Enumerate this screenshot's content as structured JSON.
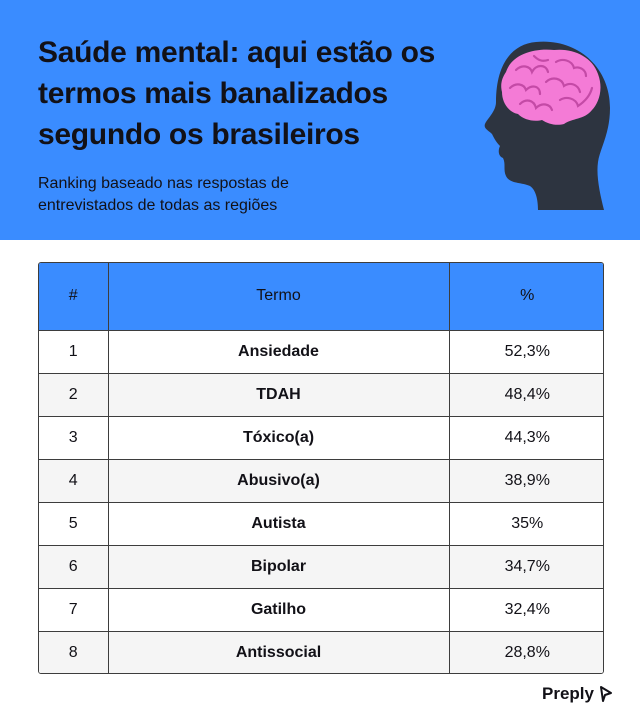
{
  "header": {
    "title": "Saúde mental: aqui estão os termos mais banalizados segundo os brasileiros",
    "subtitle": "Ranking baseado nas respostas de entrevistados de todas as regiões",
    "background": "#3a8cff",
    "illustration": "head-with-brain-icon",
    "brain_color": "#f47bd6",
    "head_color": "#2d3440"
  },
  "table": {
    "headers": [
      "#",
      "Termo",
      "%"
    ],
    "rows": [
      {
        "rank": "1",
        "term": "Ansiedade",
        "pct": "52,3%"
      },
      {
        "rank": "2",
        "term": "TDAH",
        "pct": "48,4%"
      },
      {
        "rank": "3",
        "term": "Tóxico(a)",
        "pct": "44,3%"
      },
      {
        "rank": "4",
        "term": "Abusivo(a)",
        "pct": "38,9%"
      },
      {
        "rank": "5",
        "term": "Autista",
        "pct": "35%"
      },
      {
        "rank": "6",
        "term": "Bipolar",
        "pct": "34,7%"
      },
      {
        "rank": "7",
        "term": "Gatilho",
        "pct": "32,4%"
      },
      {
        "rank": "8",
        "term": "Antissocial",
        "pct": "28,8%"
      }
    ]
  },
  "brand": {
    "name": "Preply",
    "icon": "preply-logo-icon"
  }
}
